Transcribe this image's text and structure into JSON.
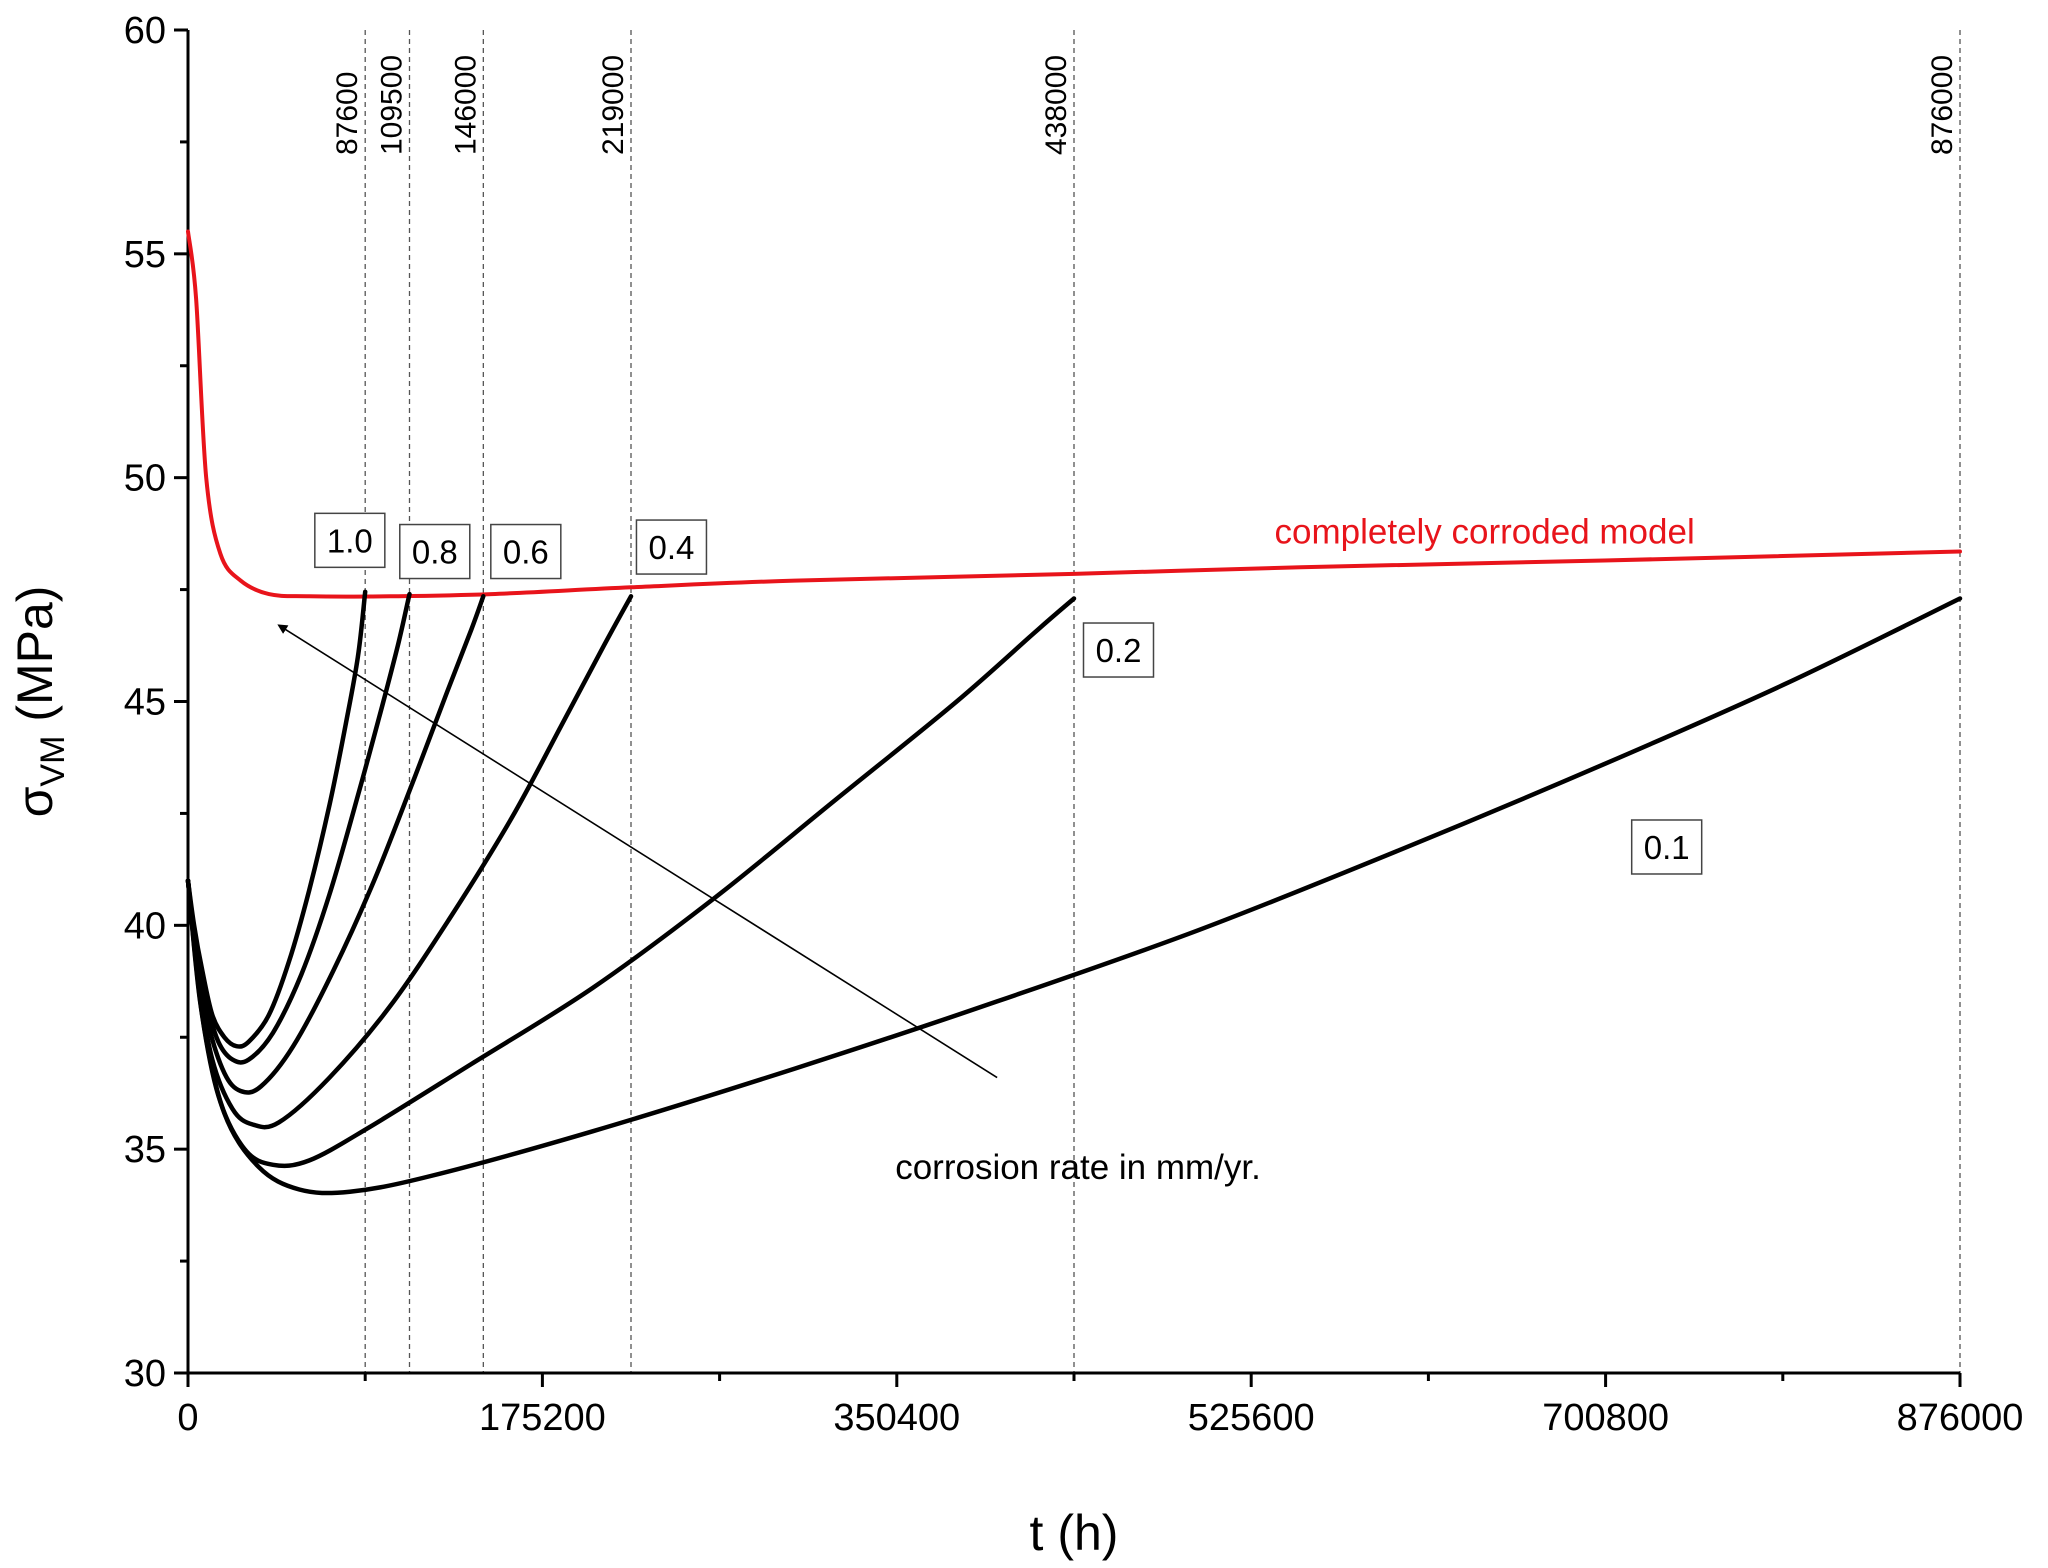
{
  "chart_data": {
    "type": "line",
    "title": "",
    "xlabel": "t (h)",
    "ylabel": "σ",
    "ylabel_sub": "VM",
    "ylabel_unit": " (MPa)",
    "xlim": [
      0,
      876000
    ],
    "ylim": [
      30,
      60
    ],
    "x_ticks": [
      0,
      175200,
      350400,
      525600,
      700800,
      876000
    ],
    "x_tick_labels": [
      "0",
      "175200",
      "350400",
      "525600",
      "700800",
      "876000"
    ],
    "y_ticks": [
      30,
      35,
      40,
      45,
      50,
      55,
      60
    ],
    "y_tick_labels": [
      "30",
      "35",
      "40",
      "45",
      "50",
      "55",
      "60"
    ],
    "grid": false,
    "reference_lines": [
      {
        "x": 87600,
        "label": "87600"
      },
      {
        "x": 109500,
        "label": "109500"
      },
      {
        "x": 146000,
        "label": "146000"
      },
      {
        "x": 219000,
        "label": "219000"
      },
      {
        "x": 438000,
        "label": "438000"
      },
      {
        "x": 876000,
        "label": "876000"
      }
    ],
    "series": [
      {
        "name": "completely corroded model",
        "color": "#e8141b",
        "points": [
          [
            0,
            55.5
          ],
          [
            4000,
            54
          ],
          [
            9000,
            50.0
          ],
          [
            16000,
            48.3
          ],
          [
            26000,
            47.7
          ],
          [
            40000,
            47.4
          ],
          [
            60000,
            47.35
          ],
          [
            100000,
            47.35
          ],
          [
            150000,
            47.4
          ],
          [
            219000,
            47.55
          ],
          [
            300000,
            47.7
          ],
          [
            438000,
            47.85
          ],
          [
            550000,
            48.0
          ],
          [
            700000,
            48.15
          ],
          [
            876000,
            48.35
          ]
        ]
      },
      {
        "name": "1.0",
        "color": "#000000",
        "points": [
          [
            0,
            41.0
          ],
          [
            3000,
            40.0
          ],
          [
            7000,
            39.0
          ],
          [
            12000,
            38.0
          ],
          [
            18000,
            37.5
          ],
          [
            24000,
            37.3
          ],
          [
            30000,
            37.4
          ],
          [
            40000,
            38.0
          ],
          [
            50000,
            39.2
          ],
          [
            60000,
            40.8
          ],
          [
            70000,
            42.7
          ],
          [
            78000,
            44.5
          ],
          [
            84000,
            46.0
          ],
          [
            87600,
            47.45
          ]
        ]
      },
      {
        "name": "0.8",
        "color": "#000000",
        "points": [
          [
            0,
            41.0
          ],
          [
            4000,
            39.5
          ],
          [
            9000,
            38.3
          ],
          [
            15000,
            37.4
          ],
          [
            22000,
            37.0
          ],
          [
            30000,
            37.0
          ],
          [
            42000,
            37.6
          ],
          [
            56000,
            38.9
          ],
          [
            70000,
            40.7
          ],
          [
            84000,
            42.9
          ],
          [
            96000,
            44.9
          ],
          [
            104000,
            46.3
          ],
          [
            109500,
            47.4
          ]
        ]
      },
      {
        "name": "0.6",
        "color": "#000000",
        "points": [
          [
            0,
            41.0
          ],
          [
            4000,
            39.3
          ],
          [
            10000,
            37.8
          ],
          [
            18000,
            36.7
          ],
          [
            26000,
            36.3
          ],
          [
            36000,
            36.4
          ],
          [
            52000,
            37.3
          ],
          [
            72000,
            39.0
          ],
          [
            92000,
            41.0
          ],
          [
            112000,
            43.3
          ],
          [
            128000,
            45.2
          ],
          [
            140000,
            46.6
          ],
          [
            146000,
            47.35
          ]
        ]
      },
      {
        "name": "0.4",
        "color": "#000000",
        "points": [
          [
            0,
            41.0
          ],
          [
            5000,
            38.8
          ],
          [
            12000,
            37.0
          ],
          [
            22000,
            35.9
          ],
          [
            32000,
            35.55
          ],
          [
            45000,
            35.6
          ],
          [
            70000,
            36.6
          ],
          [
            100000,
            38.2
          ],
          [
            130000,
            40.2
          ],
          [
            160000,
            42.4
          ],
          [
            185000,
            44.5
          ],
          [
            205000,
            46.2
          ],
          [
            219000,
            47.35
          ]
        ]
      },
      {
        "name": "0.2",
        "color": "#000000",
        "points": [
          [
            0,
            41.0
          ],
          [
            6000,
            38.3
          ],
          [
            15000,
            36.2
          ],
          [
            28000,
            35.0
          ],
          [
            42000,
            34.65
          ],
          [
            60000,
            34.75
          ],
          [
            90000,
            35.5
          ],
          [
            140000,
            36.9
          ],
          [
            200000,
            38.6
          ],
          [
            260000,
            40.6
          ],
          [
            320000,
            42.8
          ],
          [
            380000,
            45.0
          ],
          [
            420000,
            46.6
          ],
          [
            438000,
            47.3
          ]
        ]
      },
      {
        "name": "0.1",
        "color": "#000000",
        "points": [
          [
            0,
            41.0
          ],
          [
            7000,
            38.0
          ],
          [
            18000,
            35.8
          ],
          [
            35000,
            34.6
          ],
          [
            55000,
            34.1
          ],
          [
            80000,
            34.05
          ],
          [
            120000,
            34.4
          ],
          [
            200000,
            35.4
          ],
          [
            300000,
            36.8
          ],
          [
            400000,
            38.3
          ],
          [
            500000,
            39.9
          ],
          [
            600000,
            41.7
          ],
          [
            700000,
            43.6
          ],
          [
            790000,
            45.4
          ],
          [
            876000,
            47.3
          ]
        ]
      }
    ],
    "box_labels": [
      {
        "text": "1.0",
        "x": 80000,
        "y": 48.6
      },
      {
        "text": "0.8",
        "x": 122000,
        "y": 48.35
      },
      {
        "text": "0.6",
        "x": 167000,
        "y": 48.35
      },
      {
        "text": "0.4",
        "x": 239000,
        "y": 48.45
      },
      {
        "text": "0.2",
        "x": 460000,
        "y": 46.15
      },
      {
        "text": "0.1",
        "x": 731000,
        "y": 41.75
      }
    ],
    "red_label": {
      "text": "completely corroded model",
      "x": 641000,
      "y": 48.8
    },
    "annotation": {
      "text": "corrosion rate in mm/yr.",
      "text_x": 440000,
      "text_y": 34.6,
      "arrow_from": [
        400000,
        36.6
      ],
      "arrow_to": [
        45000,
        46.7
      ]
    }
  }
}
